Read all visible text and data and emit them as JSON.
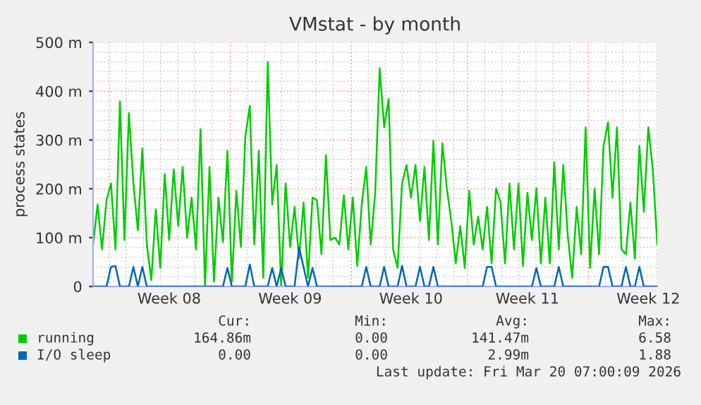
{
  "chart_data": {
    "type": "line",
    "title": "VMstat - by month",
    "ylabel": "process states",
    "categories": [
      null,
      null,
      null,
      null,
      null,
      null,
      null,
      null,
      null,
      null,
      null,
      null,
      null,
      null,
      null,
      null,
      null,
      "Week 08",
      null,
      null,
      null,
      null,
      null,
      null,
      null,
      null,
      null,
      null,
      null,
      null,
      null,
      null,
      null,
      null,
      null,
      null,
      null,
      null,
      null,
      null,
      null,
      null,
      null,
      null,
      "Week 09",
      null,
      null,
      null,
      null,
      null,
      null,
      null,
      null,
      null,
      null,
      null,
      null,
      null,
      null,
      null,
      null,
      null,
      null,
      null,
      null,
      null,
      null,
      null,
      null,
      null,
      null,
      "Week 10",
      null,
      null,
      null,
      null,
      null,
      null,
      null,
      null,
      null,
      null,
      null,
      null,
      null,
      null,
      null,
      null,
      null,
      null,
      null,
      null,
      null,
      null,
      null,
      null,
      null,
      "Week 11",
      null,
      null,
      null,
      null,
      null,
      null,
      null,
      null,
      null,
      null,
      null,
      null,
      null,
      null,
      null,
      null,
      null,
      null,
      null,
      null,
      null,
      null,
      null,
      null,
      null,
      null,
      "Week 12",
      null,
      null
    ],
    "ylim": [
      0,
      500
    ],
    "yticks": [
      0,
      {
        "value": 100,
        "label": "100 m"
      },
      {
        "value": 200,
        "label": "200 m"
      },
      {
        "value": 300,
        "label": "300 m"
      },
      {
        "value": 400,
        "label": "400 m"
      },
      {
        "value": 500,
        "label": "500 m"
      }
    ],
    "grid": true,
    "legend": "bottom",
    "series": [
      {
        "name": "running",
        "color": "#00cc00",
        "values": [
          86,
          168,
          76,
          177,
          211,
          76,
          379,
          95,
          355,
          211,
          115,
          283,
          86,
          13,
          158,
          38,
          230,
          95,
          240,
          124,
          245,
          100,
          182,
          76,
          322,
          0,
          245,
          10,
          182,
          91,
          278,
          10,
          196,
          81,
          307,
          370,
          86,
          278,
          18,
          460,
          168,
          249,
          0,
          211,
          81,
          163,
          57,
          172,
          18,
          182,
          177,
          66,
          269,
          95,
          100,
          86,
          187,
          76,
          182,
          42,
          168,
          245,
          86,
          192,
          447,
          326,
          384,
          76,
          38,
          211,
          249,
          182,
          249,
          134,
          245,
          95,
          298,
          86,
          293,
          201,
          134,
          47,
          124,
          38,
          196,
          86,
          143,
          76,
          163,
          47,
          201,
          172,
          47,
          211,
          76,
          211,
          42,
          192,
          95,
          201,
          47,
          182,
          47,
          254,
          76,
          249,
          105,
          18,
          163,
          66,
          326,
          38,
          201,
          66,
          288,
          336,
          182,
          326,
          76,
          66,
          172,
          57,
          288,
          153,
          326,
          240,
          86
        ]
      },
      {
        "name": "I/O sleep",
        "color": "#0066b3",
        "values": [
          0,
          0,
          0,
          0,
          40,
          42,
          0,
          0,
          0,
          40,
          0,
          40,
          0,
          0,
          0,
          0,
          0,
          0,
          0,
          0,
          0,
          0,
          0,
          0,
          0,
          0,
          0,
          0,
          0,
          0,
          38,
          0,
          0,
          0,
          0,
          45,
          0,
          0,
          0,
          0,
          38,
          0,
          38,
          0,
          0,
          0,
          80,
          40,
          0,
          38,
          0,
          0,
          0,
          0,
          0,
          0,
          0,
          0,
          0,
          0,
          0,
          40,
          0,
          0,
          0,
          40,
          0,
          0,
          0,
          42,
          0,
          0,
          0,
          40,
          0,
          0,
          40,
          0,
          0,
          0,
          0,
          0,
          0,
          0,
          0,
          0,
          0,
          0,
          40,
          40,
          0,
          0,
          0,
          0,
          0,
          0,
          0,
          0,
          0,
          38,
          0,
          0,
          0,
          0,
          40,
          0,
          0,
          0,
          0,
          0,
          0,
          0,
          0,
          0,
          40,
          40,
          0,
          0,
          0,
          40,
          0,
          0,
          40,
          0,
          0,
          0,
          0
        ]
      }
    ],
    "annotations": [
      "Cur:",
      "Min:",
      "Avg:",
      "Max:",
      "164.86m",
      "0.00",
      "141.47m",
      "6.58",
      "0.00",
      "0.00",
      "2.99m",
      "1.88",
      "Last update: Fri Mar 20 07:00:09 2026"
    ]
  }
}
